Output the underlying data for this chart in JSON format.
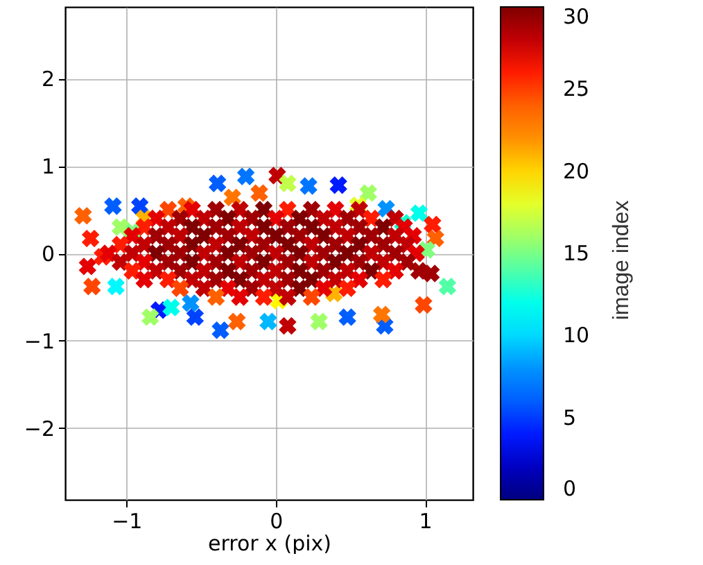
{
  "chart_data": {
    "type": "scatter",
    "xlabel": "error x (pix)",
    "clabel": "image index",
    "x": [
      -1.29,
      -1.24,
      -1.23,
      -1.26,
      -1.09,
      -0.91,
      -0.96,
      -1.07,
      -0.78,
      -0.54,
      -0.84,
      -0.37,
      -0.26,
      -0.39,
      -0.2,
      0.01,
      0.08,
      0.22,
      0.42,
      0.62,
      0.74,
      0.96,
      1.05,
      1.07,
      1.01,
      1.04,
      1.15,
      0.99,
      0.73,
      0.71,
      0.48,
      0.29,
      0.08,
      -0.05,
      0.39,
      0.02,
      -0.57,
      -0.6,
      -0.29,
      -0.11,
      -1.04,
      -1.16,
      -0.88,
      0.55,
      0.85,
      -0.7,
      -0.72,
      -0.56,
      -0.4,
      -0.24,
      -0.08,
      0.08,
      0.24,
      0.4,
      0.56,
      -0.8,
      -0.64,
      -0.48,
      -0.32,
      -0.16,
      0,
      0.16,
      0.32,
      0.48,
      0.64,
      0.8,
      -0.88,
      -0.72,
      -0.56,
      -0.4,
      -0.24,
      -0.08,
      0.08,
      0.24,
      0.4,
      0.56,
      0.72,
      0.86,
      -0.96,
      -0.8,
      -0.64,
      -0.48,
      -0.32,
      -0.16,
      0,
      0.16,
      0.32,
      0.48,
      0.64,
      0.8,
      0.92,
      -1.04,
      -0.88,
      -0.72,
      -0.56,
      -0.4,
      -0.24,
      -0.08,
      0.08,
      0.24,
      0.4,
      0.56,
      0.72,
      0.88,
      -1.12,
      -0.96,
      -0.8,
      -0.64,
      -0.48,
      -0.32,
      -0.16,
      0,
      0.16,
      0.32,
      0.48,
      0.64,
      0.8,
      0.94,
      -1.04,
      -0.88,
      -0.72,
      -0.56,
      -0.4,
      -0.24,
      -0.08,
      0.08,
      0.24,
      0.4,
      0.56,
      0.72,
      0.88,
      -0.96,
      -0.8,
      -0.64,
      -0.48,
      -0.32,
      -0.16,
      0,
      0.16,
      0.32,
      0.48,
      0.64,
      0.8,
      0.96,
      -0.88,
      -0.72,
      -0.56,
      -0.4,
      -0.24,
      -0.08,
      0.08,
      0.24,
      0.4,
      0.56,
      0.72,
      -0.64,
      -0.48,
      -0.32,
      -0.16,
      0,
      0.16,
      0.32,
      0.48,
      -0.4,
      -0.24,
      -0.08,
      0.08,
      0.24
    ],
    "values": [
      0.43,
      0.17,
      -0.38,
      -0.15,
      0.54,
      0.54,
      0.25,
      -0.38,
      -0.65,
      -0.73,
      -0.73,
      -0.88,
      -0.78,
      0.8,
      0.88,
      0.89,
      0.8,
      0.77,
      0.78,
      0.69,
      0.51,
      0.46,
      0.33,
      0.17,
      0.04,
      -0.23,
      -0.38,
      -0.59,
      -0.83,
      -0.7,
      -0.73,
      -0.78,
      -0.83,
      -0.78,
      -0.46,
      -0.54,
      -0.57,
      0.54,
      0.64,
      0.69,
      0.3,
      -0.04,
      0.4,
      0.55,
      0.35,
      -0.62,
      0.5,
      0.5,
      0.5,
      0.5,
      0.5,
      0.5,
      0.5,
      0.5,
      0.5,
      0.4,
      0.4,
      0.4,
      0.4,
      0.4,
      0.4,
      0.4,
      0.4,
      0.4,
      0.4,
      0.4,
      0.3,
      0.3,
      0.3,
      0.3,
      0.3,
      0.3,
      0.3,
      0.3,
      0.3,
      0.3,
      0.3,
      0.3,
      0.2,
      0.2,
      0.2,
      0.2,
      0.2,
      0.2,
      0.2,
      0.2,
      0.2,
      0.2,
      0.2,
      0.2,
      0.2,
      0.1,
      0.1,
      0.1,
      0.1,
      0.1,
      0.1,
      0.1,
      0.1,
      0.1,
      0.1,
      0.1,
      0.1,
      0.1,
      0,
      0,
      0,
      0,
      0,
      0,
      0,
      0,
      0,
      0,
      0,
      0,
      0,
      0,
      -0.1,
      -0.1,
      -0.1,
      -0.1,
      -0.1,
      -0.1,
      -0.1,
      -0.1,
      -0.1,
      -0.1,
      -0.1,
      -0.1,
      -0.1,
      -0.2,
      -0.2,
      -0.2,
      -0.2,
      -0.2,
      -0.2,
      -0.2,
      -0.2,
      -0.2,
      -0.2,
      -0.2,
      -0.2,
      -0.2,
      -0.3,
      -0.3,
      -0.3,
      -0.3,
      -0.3,
      -0.3,
      -0.3,
      -0.3,
      -0.3,
      -0.3,
      -0.3,
      -0.4,
      -0.4,
      -0.4,
      -0.4,
      -0.4,
      -0.4,
      -0.4,
      -0.4,
      -0.5,
      -0.5,
      -0.5,
      -0.5,
      -0.5
    ],
    "cvalues": [
      24,
      26,
      25,
      27,
      6,
      5,
      15,
      11,
      4,
      5,
      16,
      6,
      24,
      6,
      7,
      28,
      17,
      7,
      4,
      16,
      8,
      12,
      26,
      24,
      15,
      29,
      14,
      25,
      6,
      23,
      6,
      16,
      28,
      9,
      21,
      19,
      8,
      24,
      23,
      24,
      16,
      26,
      21,
      18,
      13,
      12,
      25,
      27,
      29,
      28,
      30,
      26,
      29,
      27,
      28,
      27,
      29,
      28,
      30,
      29,
      27,
      30,
      28,
      29,
      26,
      28,
      26,
      28,
      30,
      29,
      28,
      30,
      29,
      30,
      28,
      29,
      30,
      27,
      27,
      29,
      28,
      30,
      29,
      28,
      30,
      29,
      30,
      28,
      29,
      28,
      27,
      26,
      28,
      29,
      30,
      28,
      30,
      29,
      30,
      28,
      29,
      30,
      29,
      28,
      27,
      28,
      30,
      29,
      28,
      30,
      29,
      28,
      30,
      29,
      30,
      28,
      29,
      27,
      28,
      27,
      29,
      30,
      29,
      28,
      30,
      29,
      28,
      30,
      29,
      28,
      29,
      26,
      28,
      29,
      28,
      30,
      29,
      28,
      30,
      29,
      28,
      30,
      27,
      29,
      27,
      26,
      28,
      29,
      30,
      28,
      29,
      30,
      28,
      27,
      26,
      25,
      28,
      27,
      29,
      28,
      30,
      27,
      26,
      24,
      27,
      26,
      28,
      25
    ],
    "xlim": [
      -1.41,
      1.32
    ],
    "ylim": [
      -2.82,
      2.82
    ],
    "xticks": [
      -1,
      0,
      1
    ],
    "yticks": [
      -2,
      -1,
      0,
      1,
      2
    ],
    "clim": [
      0,
      30
    ],
    "cticks": [
      0,
      5,
      10,
      15,
      20,
      25,
      30
    ],
    "grid": true,
    "marker": "cross"
  }
}
